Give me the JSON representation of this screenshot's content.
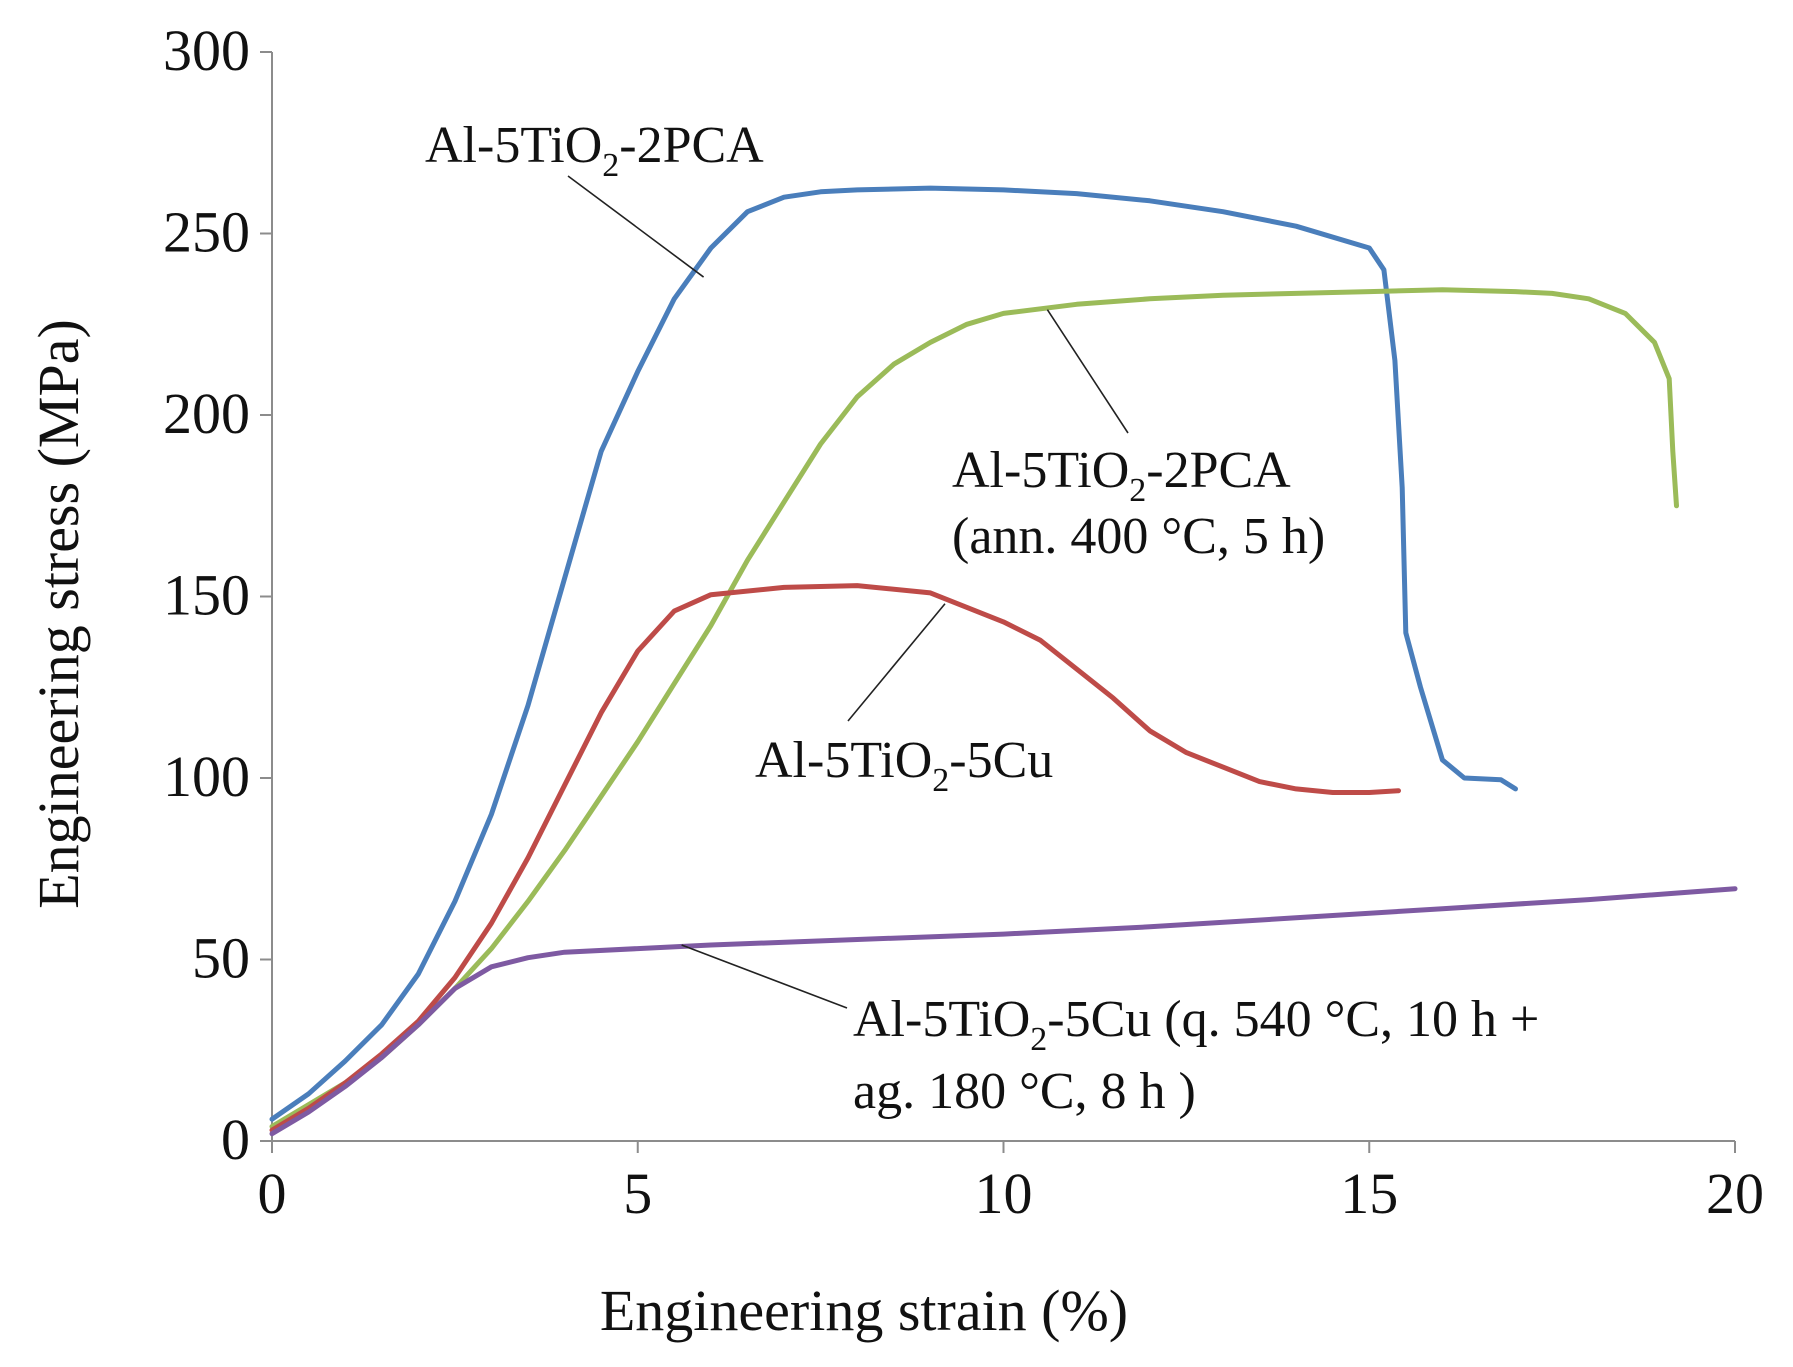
{
  "chart_data": {
    "type": "line",
    "title": "",
    "xlabel": "Engineering strain (%)",
    "ylabel": "Engineering stress (MPa)",
    "xlim": [
      0,
      20
    ],
    "ylim": [
      0,
      300
    ],
    "xticks": [
      "0",
      "5",
      "10",
      "15",
      "20"
    ],
    "yticks": [
      "0",
      "50",
      "100",
      "150",
      "200",
      "250",
      "300"
    ],
    "grid": false,
    "series": [
      {
        "name": "Al-5TiO2-2PCA",
        "color": "#4a7ebb",
        "points": [
          [
            0,
            6
          ],
          [
            0.5,
            13
          ],
          [
            1,
            22
          ],
          [
            1.5,
            32
          ],
          [
            2,
            46
          ],
          [
            2.5,
            66
          ],
          [
            3,
            90
          ],
          [
            3.5,
            120
          ],
          [
            4,
            155
          ],
          [
            4.5,
            190
          ],
          [
            5,
            212
          ],
          [
            5.5,
            232
          ],
          [
            6,
            246
          ],
          [
            6.5,
            256
          ],
          [
            7,
            260
          ],
          [
            7.5,
            261.5
          ],
          [
            8,
            262
          ],
          [
            9,
            262.5
          ],
          [
            10,
            262
          ],
          [
            11,
            261
          ],
          [
            12,
            259
          ],
          [
            13,
            256
          ],
          [
            14,
            252
          ],
          [
            15,
            246
          ],
          [
            15.2,
            240
          ],
          [
            15.35,
            215
          ],
          [
            15.45,
            180
          ],
          [
            15.5,
            140
          ],
          [
            15.7,
            125
          ],
          [
            16,
            105
          ],
          [
            16.3,
            100
          ],
          [
            16.8,
            99.5
          ],
          [
            17,
            97
          ]
        ]
      },
      {
        "name": "Al-5TiO2-2PCA (ann. 400 °C, 5 h)",
        "color": "#9bbb59",
        "points": [
          [
            0,
            4
          ],
          [
            0.5,
            10
          ],
          [
            1,
            16
          ],
          [
            1.5,
            23
          ],
          [
            2,
            32
          ],
          [
            2.5,
            42
          ],
          [
            3,
            53
          ],
          [
            3.5,
            66
          ],
          [
            4,
            80
          ],
          [
            4.5,
            95
          ],
          [
            5,
            110
          ],
          [
            5.5,
            126
          ],
          [
            6,
            142
          ],
          [
            6.5,
            160
          ],
          [
            7,
            176
          ],
          [
            7.5,
            192
          ],
          [
            8,
            205
          ],
          [
            8.5,
            214
          ],
          [
            9,
            220
          ],
          [
            9.5,
            225
          ],
          [
            10,
            228
          ],
          [
            11,
            230.5
          ],
          [
            12,
            232
          ],
          [
            13,
            233
          ],
          [
            14,
            233.5
          ],
          [
            15,
            234
          ],
          [
            16,
            234.5
          ],
          [
            17,
            234
          ],
          [
            17.5,
            233.5
          ],
          [
            18,
            232
          ],
          [
            18.5,
            228
          ],
          [
            18.9,
            220
          ],
          [
            19.1,
            210
          ],
          [
            19.15,
            190
          ],
          [
            19.2,
            175
          ]
        ]
      },
      {
        "name": "Al-5TiO2-5Cu",
        "color": "#be4b48",
        "points": [
          [
            0,
            3
          ],
          [
            0.5,
            9
          ],
          [
            1,
            16
          ],
          [
            1.5,
            24
          ],
          [
            2,
            33
          ],
          [
            2.5,
            45
          ],
          [
            3,
            60
          ],
          [
            3.5,
            78
          ],
          [
            4,
            98
          ],
          [
            4.5,
            118
          ],
          [
            5,
            135
          ],
          [
            5.5,
            146
          ],
          [
            6,
            150.5
          ],
          [
            7,
            152.5
          ],
          [
            8,
            153
          ],
          [
            9,
            151
          ],
          [
            10,
            143
          ],
          [
            10.5,
            138
          ],
          [
            11,
            130
          ],
          [
            11.5,
            122
          ],
          [
            12,
            113
          ],
          [
            12.5,
            107
          ],
          [
            13,
            103
          ],
          [
            13.5,
            99
          ],
          [
            14,
            97
          ],
          [
            14.5,
            96
          ],
          [
            15,
            96
          ],
          [
            15.4,
            96.5
          ]
        ]
      },
      {
        "name": "Al-5TiO2-5Cu (q. 540 °C, 10 h + ag. 180 °C, 8 h )",
        "color": "#7e5aa2",
        "points": [
          [
            0,
            2
          ],
          [
            0.5,
            8
          ],
          [
            1,
            15
          ],
          [
            1.5,
            23
          ],
          [
            2,
            32
          ],
          [
            2.5,
            42
          ],
          [
            3,
            48
          ],
          [
            3.5,
            50.5
          ],
          [
            4,
            52
          ],
          [
            5,
            53
          ],
          [
            6,
            54
          ],
          [
            8,
            55.5
          ],
          [
            10,
            57
          ],
          [
            12,
            59
          ],
          [
            14,
            61.5
          ],
          [
            16,
            64
          ],
          [
            18,
            66.5
          ],
          [
            20,
            69.5
          ]
        ]
      }
    ],
    "annotations": [
      {
        "main": "Al-5TiO",
        "sub": "2",
        "rest": "-2PCA",
        "line2": "",
        "points_to": [
          5.9,
          238
        ]
      },
      {
        "main": "Al-5TiO",
        "sub": "2",
        "rest": "-2PCA",
        "line2": "(ann. 400 °C, 5 h)",
        "points_to": [
          10.6,
          229
        ]
      },
      {
        "main": "Al-5TiO",
        "sub": "2",
        "rest": "-5Cu",
        "line2": "",
        "points_to": [
          9.2,
          148
        ]
      },
      {
        "main": "Al-5TiO",
        "sub": "2",
        "rest": "-5Cu  (q. 540 °C, 10 h +",
        "line2": "ag. 180 °C, 8 h )",
        "points_to": [
          5.6,
          54
        ]
      }
    ]
  }
}
